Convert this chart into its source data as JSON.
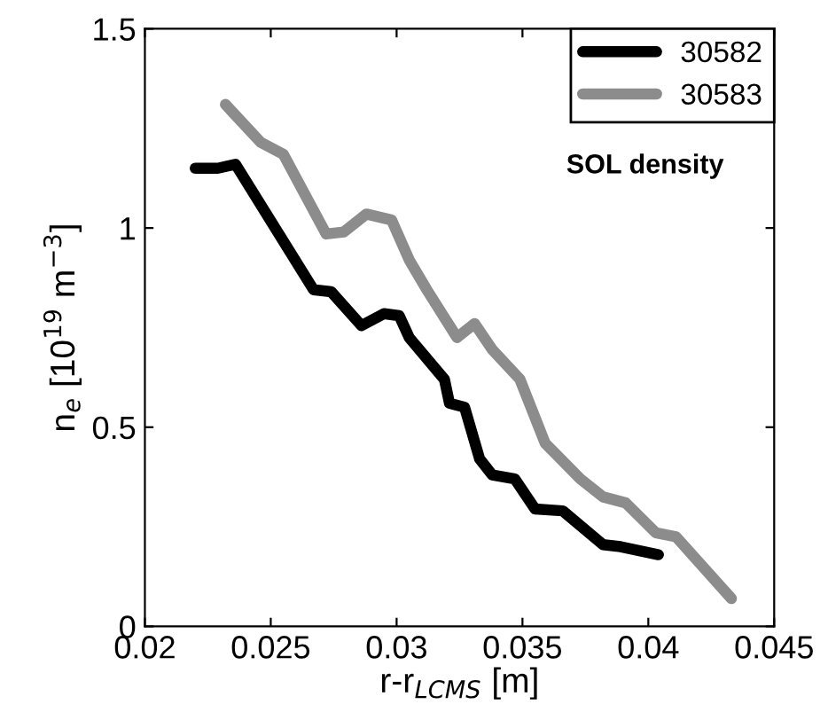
{
  "chart_data": {
    "type": "line",
    "xlabel": "r-r$_{LCMS}$ [m]",
    "ylabel": "n$_{e}$ [10$^{19}$ m$^{−3}$]",
    "annotations": [
      "SOL density"
    ],
    "xlim": [
      0.02,
      0.045
    ],
    "ylim": [
      0,
      1.5
    ],
    "xticks": [
      0.02,
      0.025,
      0.03,
      0.035,
      0.04,
      0.045
    ],
    "yticks": [
      0,
      0.5,
      1,
      1.5
    ],
    "grid": false,
    "legend": "top right",
    "line_style": "solid",
    "marker": "none",
    "series": [
      {
        "name": "30582",
        "color": "#000000",
        "x": [
          0.022,
          0.0229,
          0.0236,
          0.0267,
          0.0274,
          0.0286,
          0.0295,
          0.0301,
          0.0305,
          0.0319,
          0.0321,
          0.0327,
          0.0333,
          0.0338,
          0.0347,
          0.0355,
          0.0366,
          0.0382,
          0.0389,
          0.0404
        ],
        "values": [
          1.15,
          1.15,
          1.16,
          0.845,
          0.84,
          0.755,
          0.785,
          0.78,
          0.725,
          0.62,
          0.56,
          0.55,
          0.42,
          0.38,
          0.37,
          0.295,
          0.29,
          0.205,
          0.2,
          0.18
        ]
      },
      {
        "name": "30583",
        "color": "#8c8c8c",
        "x": [
          0.0232,
          0.0246,
          0.0255,
          0.0272,
          0.0279,
          0.0288,
          0.0298,
          0.0305,
          0.0312,
          0.0324,
          0.0331,
          0.0338,
          0.0349,
          0.0359,
          0.0373,
          0.0382,
          0.0391,
          0.0403,
          0.0411,
          0.0433
        ],
        "values": [
          1.31,
          1.215,
          1.185,
          0.985,
          0.99,
          1.035,
          1.02,
          0.92,
          0.845,
          0.725,
          0.76,
          0.695,
          0.62,
          0.46,
          0.37,
          0.325,
          0.31,
          0.235,
          0.225,
          0.07
        ]
      }
    ]
  }
}
